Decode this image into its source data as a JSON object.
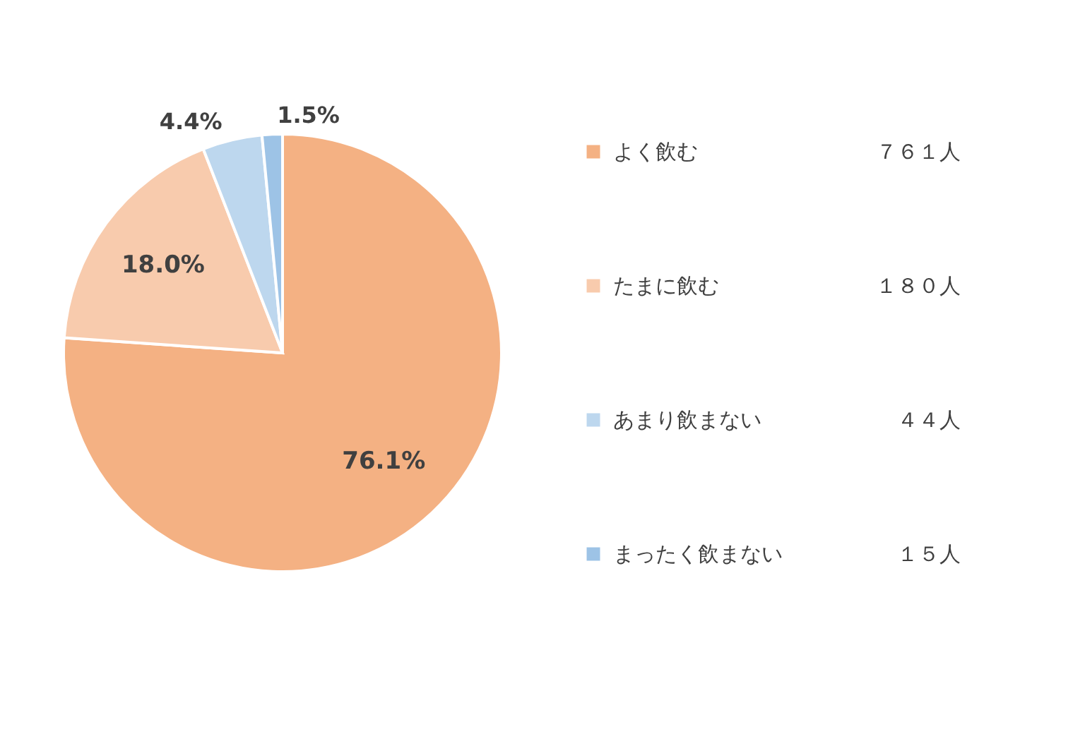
{
  "chart_data": {
    "type": "pie",
    "categories": [
      "よく飲む",
      "たまに飲む",
      "あまり飲まない",
      "まったく飲まない"
    ],
    "values": [
      76.1,
      18.0,
      4.4,
      1.5
    ],
    "colors": [
      "#f4b183",
      "#f8cbad",
      "#bdd7ee",
      "#9dc3e6"
    ],
    "value_labels": [
      "76.1%",
      "18.0%",
      "4.4%",
      "1.5%"
    ],
    "annotations": [
      "７６１人",
      "１８０人",
      "４４人",
      "１５人"
    ],
    "legend": "right"
  }
}
